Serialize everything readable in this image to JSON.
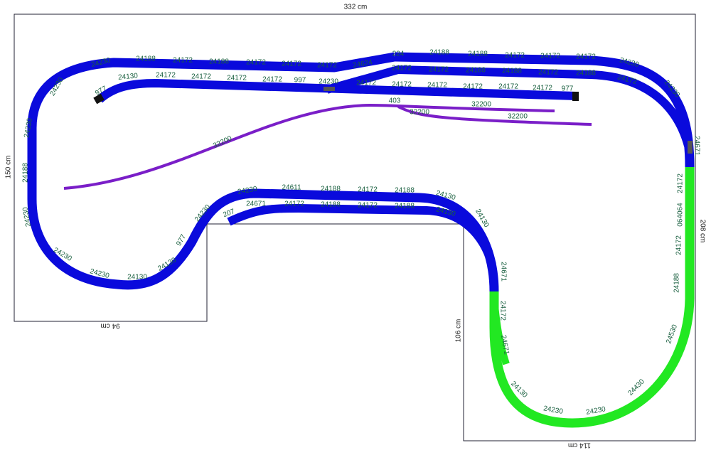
{
  "dimensions": [
    "332 cm",
    "150 cm",
    "94 cm",
    "106 cm",
    "114 cm",
    "208 cm"
  ],
  "track_labels": [
    "24230",
    "24188",
    "24172",
    "24188",
    "24172",
    "24172",
    "24172",
    "24624",
    "224",
    "24188",
    "24188",
    "24172",
    "24172",
    "24172",
    "24230",
    "24230",
    "24671",
    "977",
    "24130",
    "24172",
    "24172",
    "24172",
    "24172",
    "997",
    "24172",
    "24172",
    "24188",
    "24188",
    "24172",
    "24188",
    "24172",
    "24230",
    "24172",
    "24172",
    "24172",
    "24172",
    "24172",
    "24172",
    "977",
    "403",
    "32200",
    "32200",
    "32200",
    "32200",
    "24230",
    "24230",
    "24188",
    "24230",
    "24230",
    "24230",
    "24130",
    "24130",
    "977",
    "24230",
    "207",
    "24230",
    "24611",
    "24188",
    "24172",
    "24188",
    "24130",
    "24130",
    "24671",
    "24671",
    "24172",
    "24188",
    "24172",
    "24188",
    "24130",
    "24172",
    "064064",
    "24172",
    "24188",
    "24530",
    "24430",
    "24230",
    "24230",
    "24130",
    "24671",
    "24172"
  ]
}
